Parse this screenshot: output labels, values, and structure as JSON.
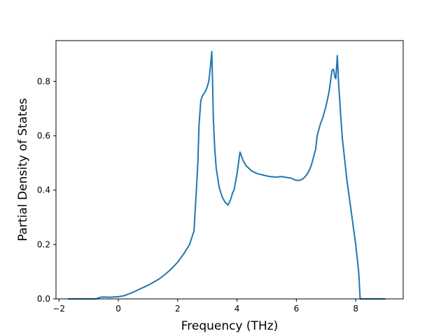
{
  "chart_data": {
    "type": "line",
    "title": "",
    "xlabel": "Frequency (THz)",
    "ylabel": "Partial Density of States",
    "xlim": [
      -2.1,
      9.6
    ],
    "ylim": [
      0.0,
      0.95
    ],
    "xticks": [
      -2,
      0,
      2,
      4,
      6,
      8
    ],
    "xtick_labels": [
      "−2",
      "0",
      "2",
      "4",
      "6",
      "8"
    ],
    "yticks": [
      0.0,
      0.2,
      0.4,
      0.6,
      0.8
    ],
    "ytick_labels": [
      "0.0",
      "0.2",
      "0.4",
      "0.6",
      "0.8"
    ],
    "grid": false,
    "legend": "none",
    "line_color": "#1f77b4",
    "series": [
      {
        "x": [
          -1.7,
          -1.2,
          -0.75,
          -0.6,
          -0.5,
          -0.3,
          0,
          0.2,
          0.4,
          0.6,
          0.8,
          1.0,
          1.2,
          1.4,
          1.6,
          1.8,
          2.0,
          2.2,
          2.4,
          2.55,
          2.62,
          2.68,
          2.72,
          2.78,
          2.85,
          2.92,
          2.98,
          3.05,
          3.1,
          3.15,
          3.18,
          3.2,
          3.25,
          3.3,
          3.4,
          3.5,
          3.6,
          3.7,
          3.8,
          3.85,
          3.9,
          4.0,
          4.1,
          4.12,
          4.2,
          4.3,
          4.45,
          4.5,
          4.7,
          4.9,
          5.1,
          5.3,
          5.5,
          5.6,
          5.7,
          5.8,
          5.9,
          6.0,
          6.1,
          6.2,
          6.3,
          6.4,
          6.5,
          6.6,
          6.65,
          6.7,
          6.8,
          6.9,
          7.0,
          7.1,
          7.2,
          7.25,
          7.3,
          7.33,
          7.38,
          7.42,
          7.5,
          7.55,
          7.7,
          7.8,
          7.9,
          8.0,
          8.05,
          8.1,
          8.15,
          8.3,
          9.0
        ],
        "y": [
          0.0,
          0.0,
          0.0,
          0.006,
          0.007,
          0.006,
          0.008,
          0.012,
          0.02,
          0.03,
          0.04,
          0.05,
          0.062,
          0.075,
          0.092,
          0.112,
          0.135,
          0.165,
          0.2,
          0.25,
          0.38,
          0.5,
          0.64,
          0.73,
          0.75,
          0.76,
          0.775,
          0.8,
          0.85,
          0.91,
          0.78,
          0.67,
          0.55,
          0.48,
          0.41,
          0.375,
          0.355,
          0.345,
          0.37,
          0.39,
          0.4,
          0.46,
          0.54,
          0.535,
          0.51,
          0.49,
          0.475,
          0.47,
          0.46,
          0.455,
          0.45,
          0.448,
          0.45,
          0.448,
          0.446,
          0.445,
          0.44,
          0.436,
          0.436,
          0.44,
          0.45,
          0.465,
          0.49,
          0.53,
          0.55,
          0.6,
          0.64,
          0.67,
          0.71,
          0.76,
          0.84,
          0.845,
          0.815,
          0.81,
          0.895,
          0.8,
          0.665,
          0.59,
          0.44,
          0.36,
          0.28,
          0.2,
          0.15,
          0.1,
          0.0,
          0.0,
          0.0
        ]
      }
    ]
  }
}
